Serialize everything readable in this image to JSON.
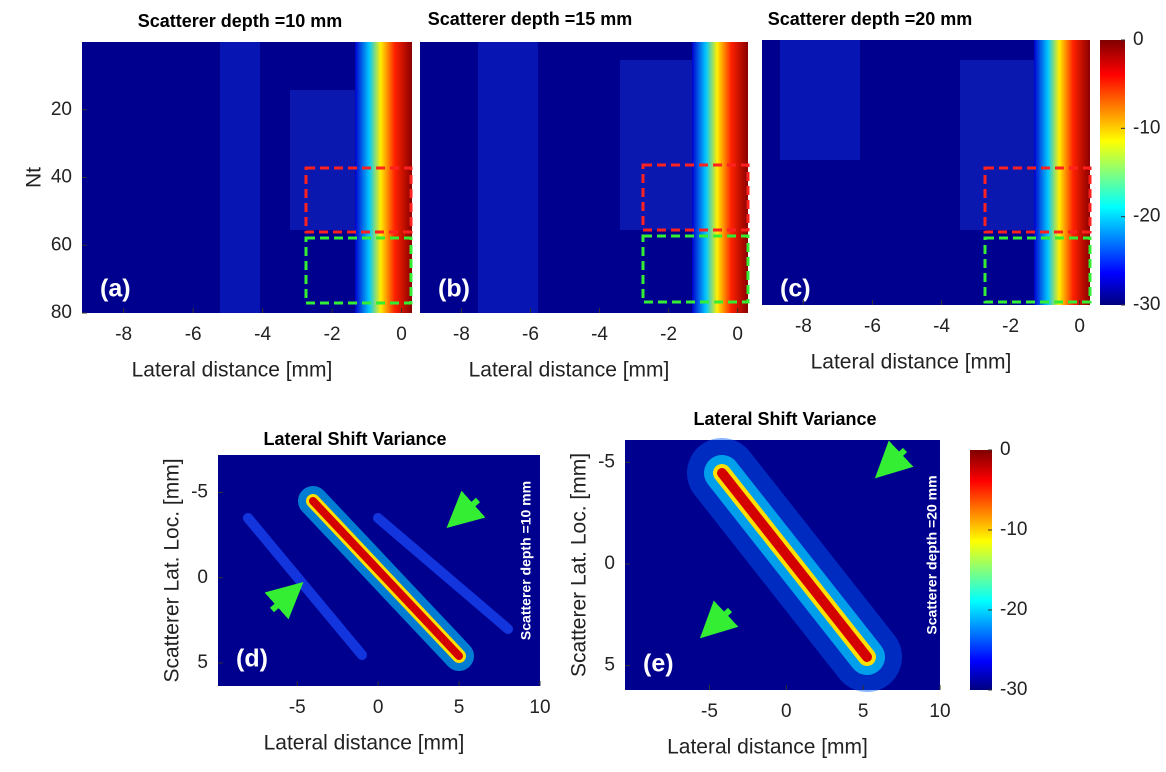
{
  "chart_data": [
    {
      "type": "heatmap",
      "title": "Scatterer depth =10 mm",
      "panel_label": "(a)",
      "xlabel": "Lateral distance [mm]",
      "ylabel": "Nt",
      "xlim": [
        -9.2,
        0.3
      ],
      "xticks": [
        -8,
        -6,
        -4,
        -2,
        0
      ],
      "ylim": [
        0,
        80
      ],
      "y_reversed": true,
      "yticks": [
        20,
        40,
        60,
        80
      ]
    },
    {
      "type": "heatmap",
      "title": "Scatterer depth =15 mm",
      "panel_label": "(b)",
      "xlabel": "Lateral distance [mm]",
      "xlim": [
        -9.2,
        0.3
      ],
      "xticks": [
        -8,
        -6,
        -4,
        -2,
        0
      ],
      "ylim": [
        0,
        80
      ],
      "y_reversed": true
    },
    {
      "type": "heatmap",
      "title": "Scatterer depth =20 mm",
      "panel_label": "(c)",
      "xlabel": "Lateral distance [mm]",
      "xlim": [
        -9.2,
        0.3
      ],
      "xticks": [
        -8,
        -6,
        -4,
        -2,
        0
      ],
      "ylim": [
        0,
        80
      ],
      "y_reversed": true,
      "colorbar": {
        "clim": [
          -30,
          0
        ],
        "ticks": [
          0,
          -10,
          -20,
          -30
        ]
      }
    },
    {
      "type": "heatmap",
      "title": "Lateral Shift Variance",
      "panel_label": "(d)",
      "annotation": "Scatterer depth =10 mm",
      "xlabel": "Lateral distance [mm]",
      "ylabel": "Scatterer Lat. Loc. [mm]",
      "xlim": [
        -9.9,
        10
      ],
      "xticks": [
        -5,
        0,
        5,
        10
      ],
      "ylim": [
        -7.2,
        6.35
      ],
      "y_reversed": true,
      "yticks": [
        -5,
        0,
        5
      ]
    },
    {
      "type": "heatmap",
      "title": "Lateral Shift Variance",
      "panel_label": "(e)",
      "annotation": "Scatterer depth =20 mm",
      "xlabel": "Lateral distance [mm]",
      "ylabel": "Scatterer Lat. Loc. [mm]",
      "xlim": [
        -10.5,
        10
      ],
      "xticks": [
        -5,
        0,
        5,
        10
      ],
      "ylim": [
        -6.1,
        6.2
      ],
      "y_reversed": true,
      "yticks": [
        -5,
        0,
        5
      ],
      "colorbar": {
        "clim": [
          -30,
          0
        ],
        "ticks": [
          0,
          -10,
          -20,
          -30
        ]
      }
    }
  ]
}
